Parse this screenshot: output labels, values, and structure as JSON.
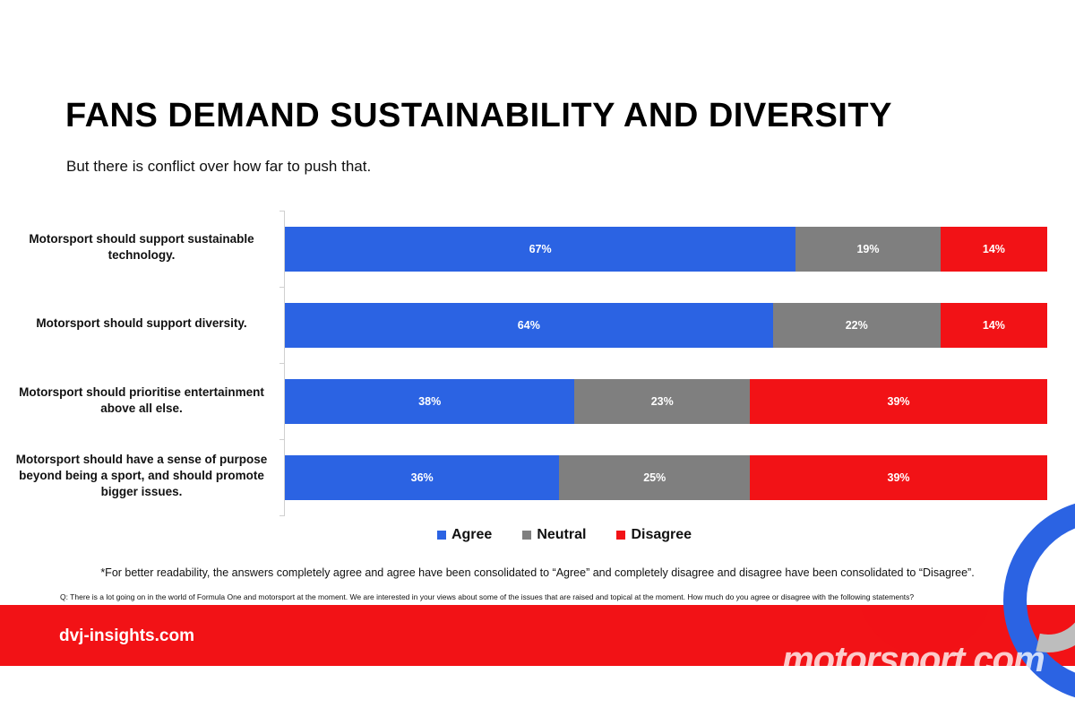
{
  "title": "FANS DEMAND SUSTAINABILITY AND DIVERSITY",
  "subtitle": "But there is conflict over how far to push that.",
  "colors": {
    "agree": "#2b63e3",
    "neutral": "#7f7f7f",
    "disagree": "#f21216",
    "footer": "#f21216"
  },
  "chart_data": {
    "type": "bar",
    "orientation": "horizontal",
    "stacked": true,
    "percent_stacked": true,
    "categories": [
      "Motorsport should support sustainable technology.",
      "Motorsport should support diversity.",
      "Motorsport should prioritise entertainment above all else.",
      "Motorsport should have a sense of purpose beyond being a sport, and should promote bigger issues."
    ],
    "series": [
      {
        "name": "Agree",
        "values": [
          67,
          64,
          38,
          36
        ],
        "labels": [
          "67%",
          "64%",
          "38%",
          "36%"
        ]
      },
      {
        "name": "Neutral",
        "values": [
          19,
          22,
          23,
          25
        ],
        "labels": [
          "19%",
          "22%",
          "23%",
          "25%"
        ]
      },
      {
        "name": "Disagree",
        "values": [
          14,
          14,
          39,
          39
        ],
        "labels": [
          "14%",
          "14%",
          "39%",
          "39%"
        ]
      }
    ],
    "legend": "bottom"
  },
  "footnote": "*For better readability, the answers completely agree and agree have been consolidated to “Agree” and completely disagree and disagree have been consolidated to “Disagree”.",
  "question": "Q: There is a lot going on in the world of Formula One and motorsport at the moment.  We are interested in your views about some of the issues that are raised and topical at the moment. How much do you agree or disagree with the following statements?",
  "footer": {
    "site": "dvj-insights.com"
  },
  "watermark": "motorsport.com"
}
